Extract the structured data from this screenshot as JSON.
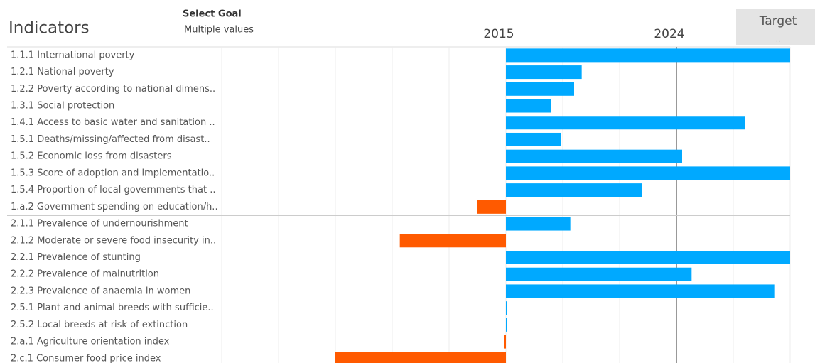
{
  "chart_data": {
    "type": "bar",
    "orientation": "horizontal",
    "title": "Indicators",
    "filter_label": "Select Goal",
    "filter_value": "Multiple values",
    "target_label": "Target",
    "target_value": "..",
    "categories": [
      "1.1.1 International poverty",
      "1.2.1 National poverty",
      "1.2.2 Poverty according to national dimens..",
      "1.3.1 Social protection",
      "1.4.1 Access to basic water and sanitation ..",
      "1.5.1 Deaths/missing/affected from disast..",
      "1.5.2 Economic loss from disasters",
      "1.5.3 Score of adoption and implementatio..",
      "1.5.4 Proportion of local governments that ..",
      "1.a.2 Government spending on education/h..",
      "2.1.1 Prevalence of undernourishment",
      "2.1.2 Moderate or severe food insecurity in..",
      "2.2.1 Prevalence of stunting",
      "2.2.2 Prevalence of malnutrition",
      "2.2.3 Prevalence of anaemia in women",
      "2.5.1 Plant and animal breeds with sufficie..",
      "2.5.2 Local breeds at risk of extinction",
      "2.a.1 Agriculture orientation index",
      "2.c.1 Consumer food price index"
    ],
    "values": [
      2030,
      2019,
      2018.6,
      2017.4,
      2027.6,
      2017.9,
      2024.3,
      2030,
      2022.2,
      2013.5,
      2018.4,
      2009.4,
      2030,
      2024.8,
      2029.2,
      2015.05,
      2015.05,
      2014.9,
      2006
    ],
    "colors": [
      "#00a9ff",
      "#00a9ff",
      "#00a9ff",
      "#00a9ff",
      "#00a9ff",
      "#00a9ff",
      "#00a9ff",
      "#00a9ff",
      "#00a9ff",
      "#ff5a00",
      "#00a9ff",
      "#ff5a00",
      "#00a9ff",
      "#00a9ff",
      "#00a9ff",
      "#00a9ff",
      "#00a9ff",
      "#ff5a00",
      "#ff5a00"
    ],
    "xlim": [
      2000,
      2030
    ],
    "xticks": [
      2015,
      2024
    ],
    "xgrid": [
      2000,
      2003,
      2006,
      2009,
      2012,
      2015,
      2018,
      2021,
      2024,
      2027,
      2030
    ],
    "grid": true
  }
}
